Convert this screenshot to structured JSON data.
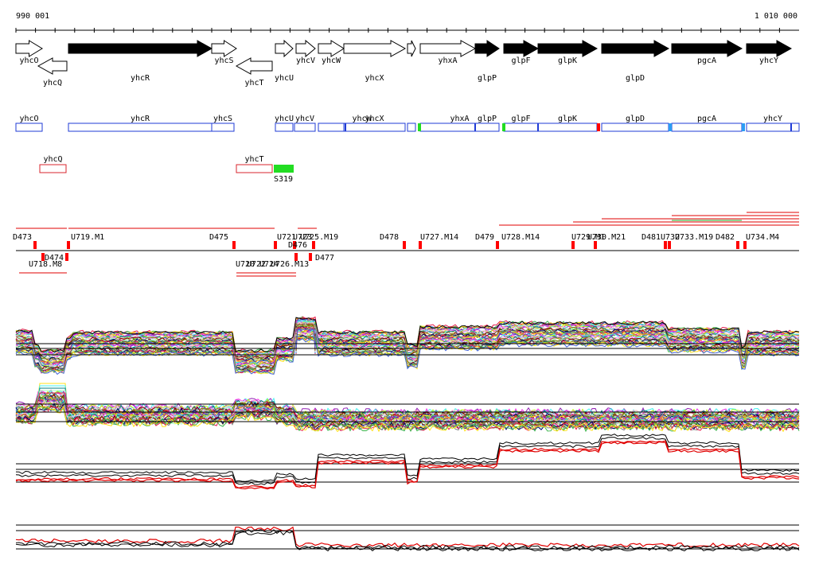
{
  "axis": {
    "start_label": "990 001",
    "end_label": "1 010 000"
  },
  "colors": {
    "gene_fill": "#000000",
    "gene_outline": "#000000",
    "cds_box": "#1f3bd6",
    "antisense_box": "#d8262c",
    "promoter_green": "#22dd22",
    "terminator_red": "#ff0000",
    "cut_light_blue": "#2a9df4",
    "dark_line": "#000000",
    "red_line": "#e00000",
    "multi": [
      "#e6194b",
      "#3cb44b",
      "#ffe119",
      "#4363d8",
      "#f58231",
      "#911eb4",
      "#46f0f0",
      "#f032e6",
      "#bcf60c",
      "#fabebe",
      "#008080",
      "#e6beff",
      "#9a6324",
      "#800000",
      "#aaffc3",
      "#808000",
      "#000075",
      "#808080"
    ]
  },
  "genes": [
    {
      "name": "yhcO",
      "strand": "+",
      "filled": false,
      "label_row": 1
    },
    {
      "name": "yhcQ",
      "strand": "-",
      "filled": false,
      "label_row": 2
    },
    {
      "name": "yhcR",
      "strand": "+",
      "filled": true,
      "label_row": 2
    },
    {
      "name": "yhcS",
      "strand": "+",
      "filled": false,
      "label_row": 1
    },
    {
      "name": "yhcT",
      "strand": "-",
      "filled": false,
      "label_row": 2
    },
    {
      "name": "yhcU",
      "strand": "+",
      "filled": false,
      "label_row": 2
    },
    {
      "name": "yhcV",
      "strand": "+",
      "filled": false,
      "label_row": 1
    },
    {
      "name": "yhcW",
      "strand": "+",
      "filled": false,
      "label_row": 1
    },
    {
      "name": "yhcX",
      "strand": "+",
      "filled": false,
      "label_row": 2
    },
    {
      "name": "",
      "strand": "+",
      "filled": false,
      "label_row": 0
    },
    {
      "name": "yhxA",
      "strand": "+",
      "filled": false,
      "label_row": 1
    },
    {
      "name": "glpP",
      "strand": "+",
      "filled": true,
      "label_row": 2
    },
    {
      "name": "glpF",
      "strand": "+",
      "filled": true,
      "label_row": 1
    },
    {
      "name": "glpK",
      "strand": "+",
      "filled": true,
      "label_row": 1
    },
    {
      "name": "glpD",
      "strand": "+",
      "filled": true,
      "label_row": 2
    },
    {
      "name": "pgcA",
      "strand": "+",
      "filled": true,
      "label_row": 1
    },
    {
      "name": "yhcY",
      "strand": "+",
      "filled": true,
      "label_row": 1
    }
  ],
  "cds_boxes": [
    {
      "name": "yhcO"
    },
    {
      "name": "yhcR"
    },
    {
      "name": "yhcS"
    },
    {
      "name": "yhcU"
    },
    {
      "name": "yhcV"
    },
    {
      "name": "yhcW"
    },
    {
      "name": "yhcX"
    },
    {
      "name": ""
    },
    {
      "name": "yhxA"
    },
    {
      "name": "glpP"
    },
    {
      "name": "glpF"
    },
    {
      "name": "glpK"
    },
    {
      "name": "glpD"
    },
    {
      "name": "pgcA"
    },
    {
      "name": "yhcY"
    }
  ],
  "antisense_boxes": [
    {
      "name": "yhcQ"
    },
    {
      "name": "yhcT"
    }
  ],
  "s_feature": {
    "label": "S319"
  },
  "segment_labels_upper": [
    "D473",
    "U719.M1",
    "D475",
    "U721",
    "U723",
    "U725.M19",
    "D478",
    "U727.M14",
    "D479",
    "U728.M14",
    "U729.M1",
    "U730.M21",
    "D481",
    "U732",
    "U733.M19",
    "D482",
    "U734.M4"
  ],
  "segment_labels_lower": [
    "D474",
    "U718.M8",
    "D476",
    "D477",
    "U720",
    "U722",
    "U724",
    "U726.M13"
  ],
  "tracks": [
    {
      "name": "condition-profiles-1"
    },
    {
      "name": "condition-profiles-2"
    },
    {
      "name": "strand-profile-1"
    },
    {
      "name": "strand-profile-2"
    }
  ]
}
